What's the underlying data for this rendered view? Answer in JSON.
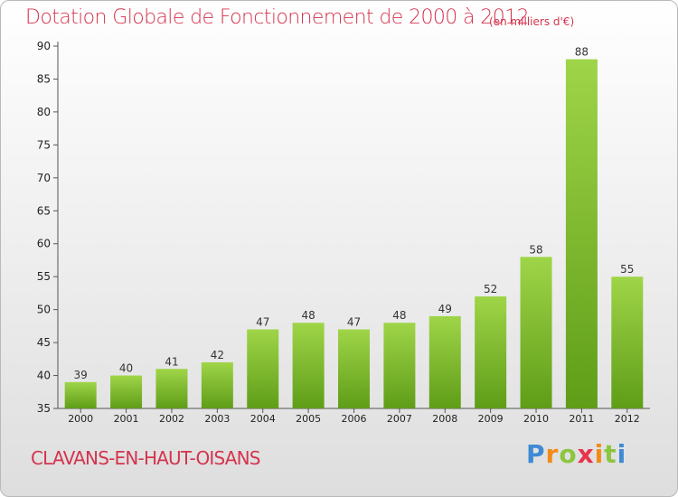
{
  "title": "Dotation Globale de Fonctionnement de 2000 à 2012",
  "unit_note": "(en milliers d'€)",
  "commune": "CLAVANS-EN-HAUT-OISANS",
  "logo": {
    "letters": [
      "P",
      "r",
      "o",
      "x",
      "i",
      "t",
      "i"
    ],
    "colors": [
      "#3e8ad4",
      "#f28b1a",
      "#8cc63f",
      "#e8334a",
      "#f28b1a",
      "#8cc63f",
      "#3e8ad4"
    ]
  },
  "colors": {
    "bar": "#7fbf2a",
    "bar_dark": "#5f9d18",
    "title": "#d4344e"
  },
  "chart_data": {
    "type": "bar",
    "categories": [
      "2000",
      "2001",
      "2002",
      "2003",
      "2004",
      "2005",
      "2006",
      "2007",
      "2008",
      "2009",
      "2010",
      "2011",
      "2012"
    ],
    "values": [
      39,
      40,
      41,
      42,
      47,
      48,
      47,
      48,
      49,
      52,
      58,
      88,
      55
    ],
    "ylim": [
      35,
      90
    ],
    "yticks": [
      35,
      40,
      45,
      50,
      55,
      60,
      65,
      70,
      75,
      80,
      85,
      90
    ],
    "grid": false
  }
}
